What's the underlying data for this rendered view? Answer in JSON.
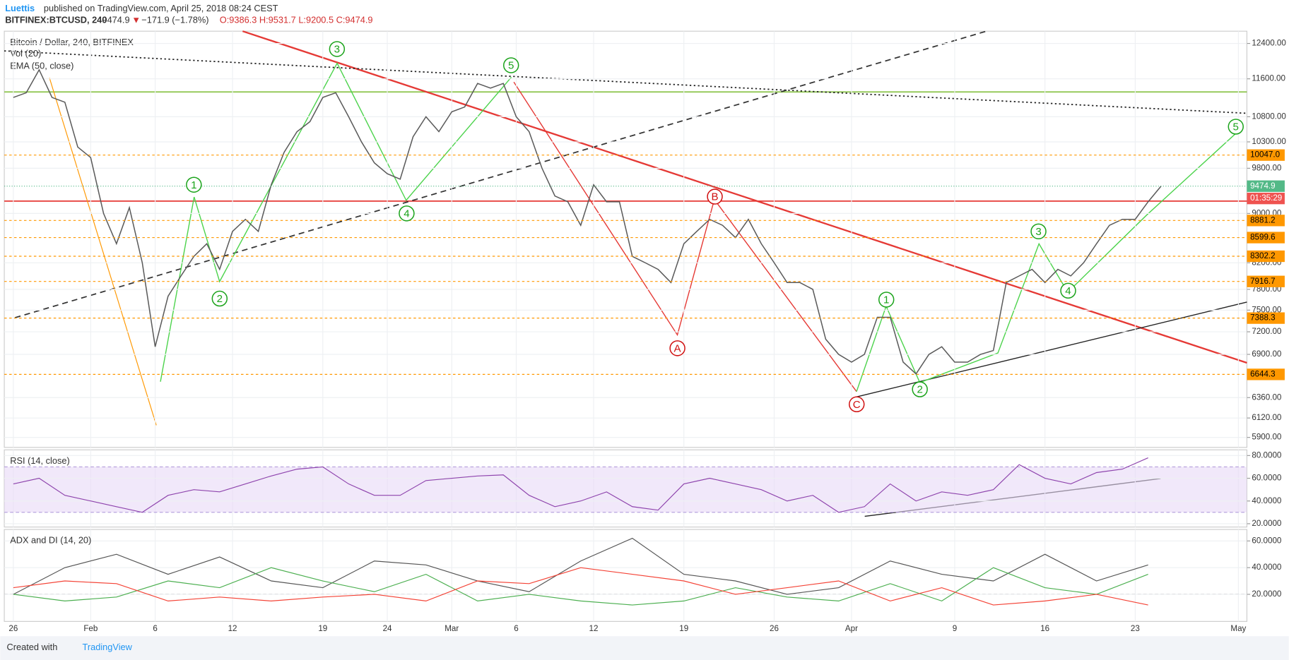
{
  "header": {
    "author": "Luettis",
    "published": "published on TradingView.com, April 25, 2018 08:24 CEST",
    "symbol": "BITFINEX:BTCUSD, 240",
    "last": "9474.9",
    "arrow": "▼",
    "change": "−171.9 (−1.78%)",
    "ohlc": "O:9386.3 H:9531.7 L:9200.5 C:9474.9"
  },
  "footer": {
    "created": "Created with",
    "brand": "TradingView"
  },
  "chart_data": [
    {
      "type": "line",
      "log_scale": true,
      "grid": true,
      "indicators": [
        "Vol (20)",
        "EMA (50, close)"
      ],
      "xlim": [
        -0.7,
        95.66
      ],
      "xticks": [
        {
          "value": 0,
          "label": "26"
        },
        {
          "value": 6,
          "label": "Feb"
        },
        {
          "value": 11,
          "label": "6"
        },
        {
          "value": 17,
          "label": "12"
        },
        {
          "value": 24,
          "label": "19"
        },
        {
          "value": 29,
          "label": "24"
        },
        {
          "value": 34,
          "label": "Mar"
        },
        {
          "value": 39,
          "label": "6"
        },
        {
          "value": 45,
          "label": "12"
        },
        {
          "value": 52,
          "label": "19"
        },
        {
          "value": 59,
          "label": "26"
        },
        {
          "value": 65,
          "label": "Apr"
        },
        {
          "value": 73,
          "label": "9"
        },
        {
          "value": 80,
          "label": "16"
        },
        {
          "value": 87,
          "label": "23"
        },
        {
          "value": 95,
          "label": "May"
        }
      ],
      "ylim": [
        5790,
        12690
      ],
      "yticks": [
        {
          "value": 12400,
          "label": "12400.00"
        },
        {
          "value": 11600,
          "label": "11600.00"
        },
        {
          "value": 10800,
          "label": "10800.00"
        },
        {
          "value": 10300,
          "label": "10300.00"
        },
        {
          "value": 9800,
          "label": "9800.00"
        },
        {
          "value": 9000,
          "label": "9000.00"
        },
        {
          "value": 8200,
          "label": "8200.00"
        },
        {
          "value": 7800,
          "label": "7800.00"
        },
        {
          "value": 7500,
          "label": "7500.00"
        },
        {
          "value": 7200,
          "label": "7200.00"
        },
        {
          "value": 6900,
          "label": "6900.00"
        },
        {
          "value": 6360,
          "label": "6360.00"
        },
        {
          "value": 6120,
          "label": "6120.00"
        },
        {
          "value": 5900,
          "label": "5900.00"
        }
      ],
      "x": [
        0,
        1,
        2,
        3,
        4,
        5,
        6,
        7,
        8,
        9,
        10,
        11,
        12,
        13,
        14,
        15,
        16,
        17,
        18,
        19,
        20,
        21,
        22,
        23,
        24,
        25,
        26,
        27,
        28,
        29,
        30,
        31,
        32,
        33,
        34,
        35,
        36,
        37,
        38,
        39,
        40,
        41,
        42,
        43,
        44,
        45,
        46,
        47,
        48,
        49,
        50,
        51,
        52,
        53,
        54,
        55,
        56,
        57,
        58,
        59,
        60,
        61,
        62,
        63,
        64,
        65,
        66,
        67,
        68,
        69,
        70,
        71,
        72,
        73,
        74,
        75,
        76,
        77,
        78,
        79,
        80,
        81,
        82,
        83,
        84,
        85,
        86,
        87,
        88,
        89
      ],
      "series": [
        {
          "name": "Bitcoin / Dollar, 240, BITFINEX",
          "color": "#5a5a5a",
          "values": [
            11200,
            11300,
            11800,
            11200,
            11100,
            10200,
            10000,
            9000,
            8500,
            9100,
            8200,
            7000,
            7700,
            8000,
            8300,
            8500,
            8100,
            8700,
            8900,
            8700,
            9500,
            10100,
            10500,
            10700,
            11200,
            11300,
            10800,
            10300,
            9900,
            9700,
            9600,
            10400,
            10800,
            10500,
            10900,
            11000,
            11500,
            11400,
            11500,
            10800,
            10500,
            9800,
            9300,
            9200,
            8800,
            9500,
            9200,
            9200,
            8300,
            8200,
            8100,
            7900,
            8500,
            8700,
            8900,
            8800,
            8600,
            8900,
            8500,
            8200,
            7900,
            7900,
            7800,
            7100,
            6900,
            6800,
            6900,
            7400,
            7400,
            6800,
            6650,
            6900,
            7000,
            6800,
            6800,
            6900,
            6950,
            7900,
            8000,
            8100,
            7900,
            8100,
            8000,
            8200,
            8500,
            8800,
            8900,
            8900,
            9200,
            9474.9
          ]
        }
      ],
      "levels": [
        {
          "value": 10047,
          "label": "10047.0"
        },
        8881.2,
        8599.6,
        8302.2,
        7916.7,
        7388.3,
        6644.3
      ],
      "level_color": "#ff9800",
      "last_price": 9474.9,
      "last_price_color": "#53b987",
      "countdown": "01:35:29",
      "countdown_color": "#ef5350",
      "annotations": [
        {
          "text": "1",
          "x": 14,
          "y": 9500,
          "color": "#1aa31a"
        },
        {
          "text": "2",
          "x": 16,
          "y": 7665,
          "color": "#1aa31a"
        },
        {
          "text": "3",
          "x": 25.1,
          "y": 12270,
          "color": "#1aa31a"
        },
        {
          "text": "4",
          "x": 30.5,
          "y": 9000,
          "color": "#1aa31a"
        },
        {
          "text": "5",
          "x": 38.6,
          "y": 11900,
          "color": "#1aa31a"
        },
        {
          "text": "1",
          "x": 67.7,
          "y": 7650,
          "color": "#1aa31a"
        },
        {
          "text": "2",
          "x": 70.3,
          "y": 6460,
          "color": "#1aa31a"
        },
        {
          "text": "3",
          "x": 79.5,
          "y": 8700,
          "color": "#1aa31a"
        },
        {
          "text": "4",
          "x": 81.8,
          "y": 7780,
          "color": "#1aa31a"
        },
        {
          "text": "5",
          "x": 94.8,
          "y": 10600,
          "color": "#1aa31a"
        },
        {
          "text": "A",
          "x": 51.5,
          "y": 6980,
          "color": "#d01010"
        },
        {
          "text": "B",
          "x": 54.4,
          "y": 9290,
          "color": "#d01010"
        },
        {
          "text": "C",
          "x": 65.4,
          "y": 6280,
          "color": "#d01010"
        }
      ]
    },
    {
      "type": "line",
      "title": "RSI (14, close)",
      "grid": true,
      "ylim": [
        17.1,
        85
      ],
      "yticks": [
        {
          "value": 80,
          "label": "80.0000"
        },
        {
          "value": 60,
          "label": "60.0000"
        },
        {
          "value": 40,
          "label": "40.0000"
        },
        {
          "value": 20,
          "label": "20.0000"
        }
      ],
      "band": [
        30,
        70
      ],
      "band_color": "#e7d8f7",
      "x": [
        0,
        2,
        4,
        6,
        8,
        10,
        12,
        14,
        16,
        18,
        20,
        22,
        24,
        26,
        28,
        30,
        32,
        34,
        36,
        38,
        40,
        42,
        44,
        46,
        48,
        50,
        52,
        54,
        56,
        58,
        60,
        62,
        64,
        66,
        68,
        70,
        72,
        74,
        76,
        78,
        80,
        82,
        84,
        86,
        88
      ],
      "series": [
        {
          "name": "RSI (14, close)",
          "color": "#8e44ad",
          "values": [
            55,
            60,
            45,
            40,
            35,
            30,
            45,
            50,
            48,
            55,
            62,
            68,
            70,
            55,
            45,
            45,
            58,
            60,
            62,
            63,
            45,
            35,
            40,
            48,
            35,
            32,
            55,
            60,
            55,
            50,
            40,
            45,
            30,
            35,
            55,
            40,
            48,
            45,
            50,
            72,
            60,
            55,
            65,
            68,
            78
          ]
        }
      ]
    },
    {
      "type": "line",
      "title": "ADX and DI (14, 20)",
      "grid": true,
      "ylim": [
        -0.3,
        68.6
      ],
      "yticks": [
        {
          "value": 60,
          "label": "60.0000"
        },
        {
          "value": 40,
          "label": "40.0000"
        },
        {
          "value": 20,
          "label": "20.0000"
        }
      ],
      "reference_line": 20,
      "x": [
        0,
        4,
        8,
        12,
        16,
        20,
        24,
        28,
        32,
        36,
        40,
        44,
        48,
        52,
        56,
        60,
        64,
        68,
        72,
        76,
        80,
        84,
        88
      ],
      "series": [
        {
          "color": "#555555",
          "values": [
            20,
            40,
            50,
            35,
            48,
            30,
            25,
            45,
            42,
            30,
            22,
            45,
            62,
            35,
            30,
            20,
            25,
            45,
            35,
            30,
            50,
            30,
            42
          ]
        },
        {
          "color": "#4caf50",
          "values": [
            20,
            15,
            18,
            30,
            25,
            40,
            30,
            22,
            35,
            15,
            20,
            15,
            12,
            15,
            25,
            18,
            15,
            28,
            15,
            40,
            25,
            20,
            35
          ]
        },
        {
          "color": "#f44336",
          "values": [
            25,
            30,
            28,
            15,
            18,
            15,
            18,
            20,
            15,
            30,
            28,
            40,
            35,
            30,
            20,
            25,
            30,
            15,
            25,
            12,
            15,
            20,
            12
          ]
        }
      ]
    }
  ]
}
